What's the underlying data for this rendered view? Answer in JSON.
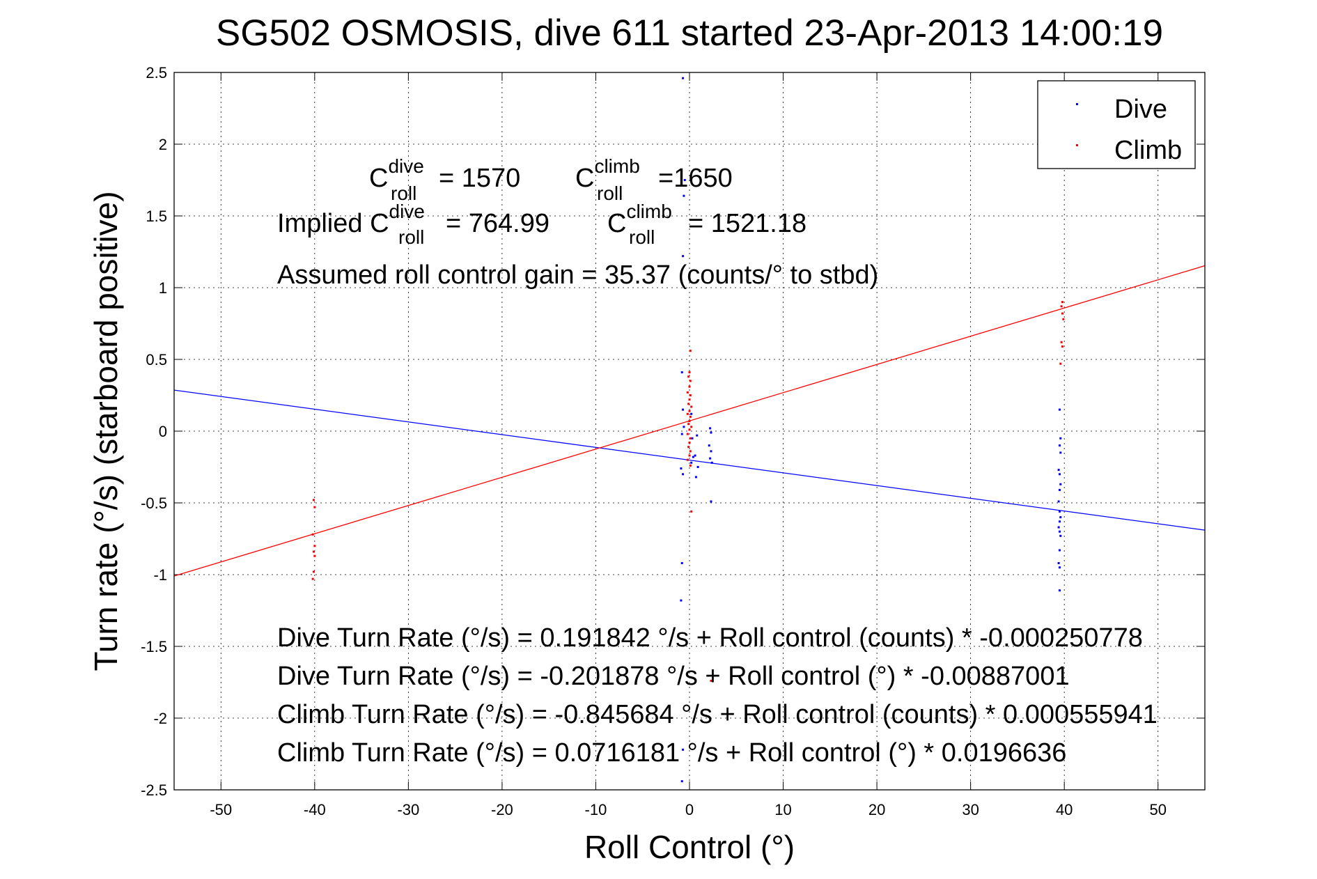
{
  "chart_data": {
    "type": "scatter",
    "title": "SG502 OSMOSIS, dive 611 started 23-Apr-2013 14:00:19",
    "xlabel": "Roll Control (°)",
    "ylabel": "Turn rate (°/s)  (starboard positive)",
    "xlim": [
      -55,
      55
    ],
    "ylim": [
      -2.5,
      2.5
    ],
    "xticks": [
      -50,
      -40,
      -30,
      -20,
      -10,
      0,
      10,
      20,
      30,
      40,
      50
    ],
    "yticks": [
      -2.5,
      -2,
      -1.5,
      -1,
      -0.5,
      0,
      0.5,
      1,
      1.5,
      2,
      2.5
    ],
    "xtick_labels": [
      "-50",
      "-40",
      "-30",
      "-20",
      "-10",
      "0",
      "10",
      "20",
      "30",
      "40",
      "50"
    ],
    "ytick_labels": [
      "-2.5",
      "-2",
      "-1.5",
      "-1",
      "-0.5",
      "0",
      "0.5",
      "1",
      "1.5",
      "2",
      "2.5"
    ],
    "grid": true,
    "legend_position": "top-right",
    "series": [
      {
        "name": "Dive",
        "color": "#0000ff",
        "points": [
          [
            -0.7,
            2.46
          ],
          [
            -0.5,
            1.75
          ],
          [
            -0.6,
            1.64
          ],
          [
            -0.7,
            1.22
          ],
          [
            -0.8,
            0.41
          ],
          [
            -0.7,
            0.15
          ],
          [
            -0.6,
            0.03
          ],
          [
            -0.8,
            -0.02
          ],
          [
            -0.9,
            -0.26
          ],
          [
            -0.7,
            -0.3
          ],
          [
            -0.8,
            -0.92
          ],
          [
            -0.9,
            -1.18
          ],
          [
            -0.7,
            -2.22
          ],
          [
            -0.8,
            -2.44
          ],
          [
            0.2,
            0.12
          ],
          [
            0.3,
            -0.05
          ],
          [
            0.4,
            -0.18
          ],
          [
            0.2,
            -0.22
          ],
          [
            0.8,
            -0.03
          ],
          [
            0.6,
            -0.17
          ],
          [
            0.9,
            -0.25
          ],
          [
            0.7,
            -0.32
          ],
          [
            2.2,
            0.02
          ],
          [
            2.3,
            -0.01
          ],
          [
            2.1,
            -0.1
          ],
          [
            2.3,
            -0.14
          ],
          [
            2.2,
            -0.19
          ],
          [
            2.4,
            -0.22
          ],
          [
            2.3,
            -0.49
          ],
          [
            39.5,
            0.15
          ],
          [
            39.6,
            -0.05
          ],
          [
            39.5,
            -0.1
          ],
          [
            39.6,
            -0.15
          ],
          [
            39.4,
            -0.27
          ],
          [
            39.5,
            -0.3
          ],
          [
            39.6,
            -0.37
          ],
          [
            39.5,
            -0.41
          ],
          [
            39.4,
            -0.49
          ],
          [
            39.5,
            -0.56
          ],
          [
            39.6,
            -0.6
          ],
          [
            39.5,
            -0.63
          ],
          [
            39.4,
            -0.67
          ],
          [
            39.5,
            -0.7
          ],
          [
            39.6,
            -0.73
          ],
          [
            39.5,
            -0.83
          ],
          [
            39.4,
            -0.92
          ],
          [
            39.5,
            -0.95
          ],
          [
            39.5,
            -1.11
          ]
        ]
      },
      {
        "name": "Climb",
        "color": "#ff0000",
        "points": [
          [
            -40.1,
            -0.48
          ],
          [
            -40.0,
            -0.53
          ],
          [
            -40.2,
            -0.72
          ],
          [
            -40.0,
            -0.8
          ],
          [
            -40.1,
            -0.84
          ],
          [
            -40.0,
            -0.87
          ],
          [
            -40.1,
            -0.98
          ],
          [
            -40.2,
            -1.03
          ],
          [
            0.1,
            0.56
          ],
          [
            0.0,
            0.41
          ],
          [
            -0.1,
            0.38
          ],
          [
            0.1,
            0.35
          ],
          [
            0.0,
            0.31
          ],
          [
            -0.2,
            0.27
          ],
          [
            0.1,
            0.25
          ],
          [
            0.0,
            0.22
          ],
          [
            -0.1,
            0.19
          ],
          [
            0.2,
            0.17
          ],
          [
            0.0,
            0.14
          ],
          [
            -0.2,
            0.12
          ],
          [
            0.1,
            0.1
          ],
          [
            0.0,
            0.07
          ],
          [
            -0.1,
            0.05
          ],
          [
            0.2,
            0.03
          ],
          [
            0.0,
            0.01
          ],
          [
            -0.2,
            -0.02
          ],
          [
            0.1,
            -0.05
          ],
          [
            0.0,
            -0.08
          ],
          [
            -0.1,
            -0.11
          ],
          [
            0.1,
            -0.14
          ],
          [
            0.0,
            -0.17
          ],
          [
            -0.2,
            -0.2
          ],
          [
            0.1,
            -0.24
          ],
          [
            0.2,
            -0.56
          ],
          [
            2.3,
            -1.74
          ],
          [
            39.8,
            0.9
          ],
          [
            39.7,
            0.87
          ],
          [
            39.8,
            0.82
          ],
          [
            39.9,
            0.78
          ],
          [
            39.7,
            0.62
          ],
          [
            39.8,
            0.59
          ],
          [
            39.6,
            0.47
          ]
        ]
      }
    ],
    "fit_lines": [
      {
        "name": "Dive fit",
        "color": "#0000ff",
        "intercept": -0.201878,
        "slope": -0.00887001
      },
      {
        "name": "Climb fit",
        "color": "#ff0000",
        "intercept": 0.0716181,
        "slope": 0.0196636
      }
    ],
    "annotations": {
      "c_roll_dive": {
        "prefix": "",
        "sup": "dive",
        "sub": "roll",
        "value": "= 1570"
      },
      "c_roll_climb": {
        "prefix": "",
        "sup": "climb",
        "sub": "roll",
        "value": "=1650"
      },
      "implied_dive": {
        "prefix": "Implied ",
        "sup": "dive",
        "sub": "roll",
        "value": "= 764.99"
      },
      "implied_climb": {
        "prefix": "",
        "sup": "climb",
        "sub": "roll",
        "value": "= 1521.18"
      },
      "gain": "Assumed roll control gain = 35.37 (counts/° to stbd)",
      "eq1": "Dive Turn Rate (°/s) = 0.191842 °/s + Roll control (counts) * -0.000250778",
      "eq2": "Dive Turn Rate (°/s) = -0.201878 °/s + Roll control (°) * -0.00887001",
      "eq3": "Climb Turn Rate (°/s) = -0.845684 °/s + Roll control (counts) * 0.000555941",
      "eq4": "Climb Turn Rate (°/s) = 0.0716181 °/s + Roll control (°) * 0.0196636"
    }
  }
}
